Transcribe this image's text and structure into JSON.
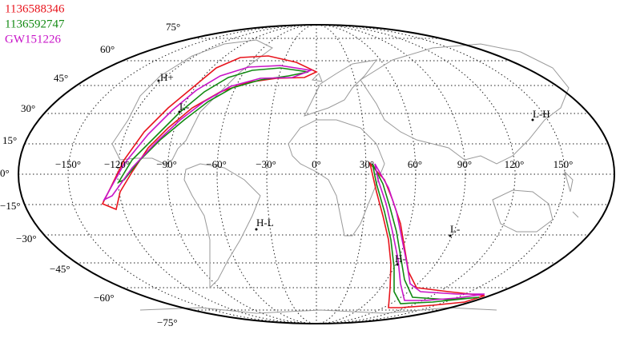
{
  "legend": [
    {
      "label": "1136588346",
      "color": "#e8141c"
    },
    {
      "label": "1136592747",
      "color": "#138a13"
    },
    {
      "label": "GW151226",
      "color": "#c814c8"
    }
  ],
  "latitude_labels": [
    "75°",
    "60°",
    "45°",
    "30°",
    "15°",
    "0°",
    "−15°",
    "−30°",
    "−45°",
    "−60°",
    "−75°"
  ],
  "longitude_labels": [
    "−150°",
    "−120°",
    "−90°",
    "−60°",
    "−30°",
    "0°",
    "30°",
    "60°",
    "90°",
    "120°",
    "150°"
  ],
  "markers": [
    "H+",
    "L-",
    "L-H",
    "H-L",
    "L-",
    "H-"
  ]
}
